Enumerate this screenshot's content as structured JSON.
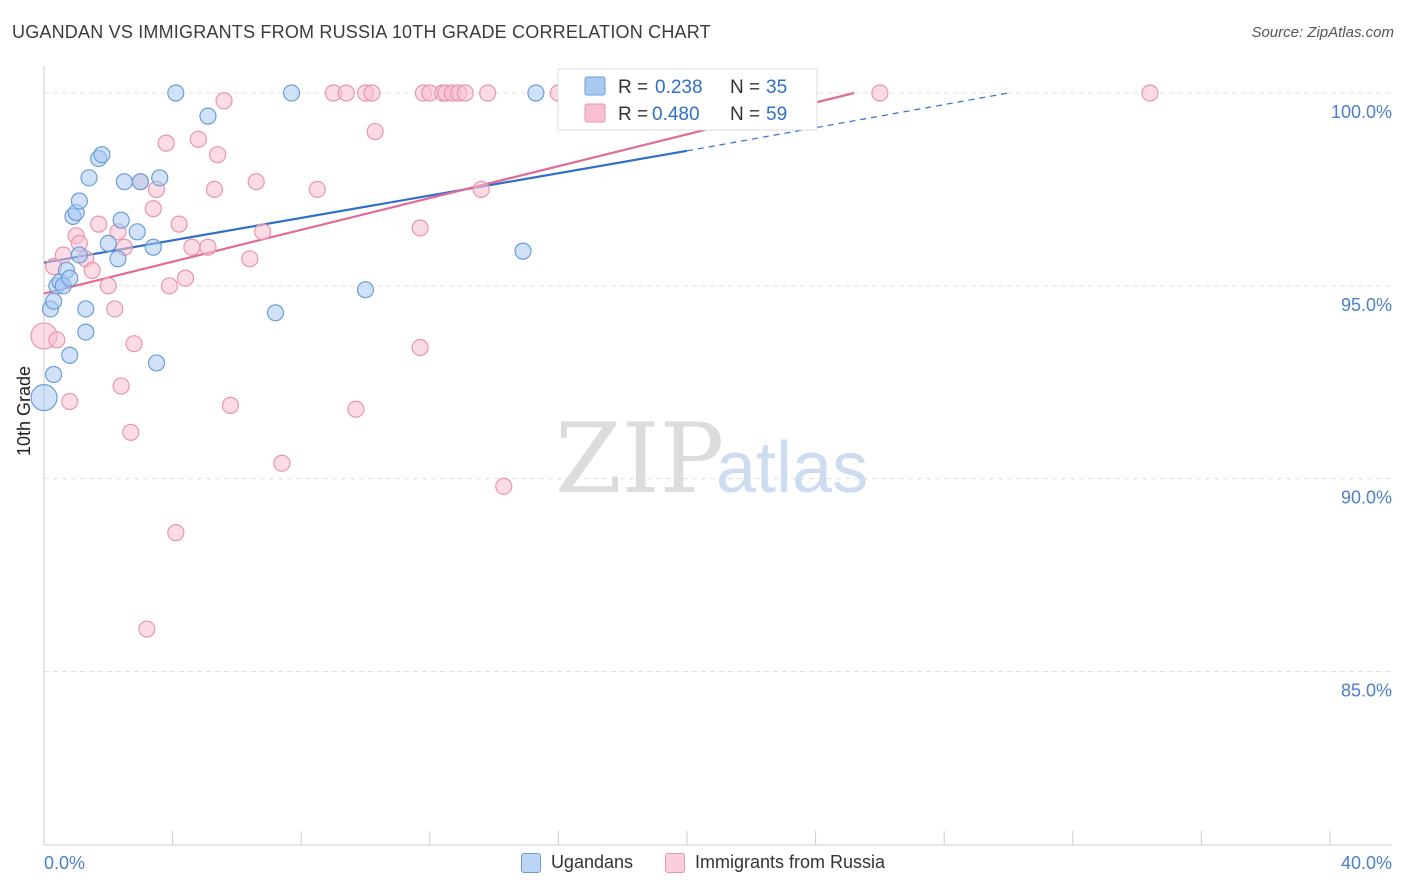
{
  "header": {
    "title": "UGANDAN VS IMMIGRANTS FROM RUSSIA 10TH GRADE CORRELATION CHART",
    "source": "Source: ZipAtlas.com"
  },
  "watermark": {
    "zip": "ZIP",
    "atlas": "atlas"
  },
  "chart_data": {
    "type": "scatter",
    "title": "UGANDAN VS IMMIGRANTS FROM RUSSIA 10TH GRADE CORRELATION CHART",
    "xlabel": "",
    "ylabel": "10th Grade",
    "xlim": [
      0,
      40
    ],
    "ylim": [
      80.5,
      100.7
    ],
    "x_tick_labels": {
      "left": "0.0%",
      "right": "40.0%"
    },
    "y_ticks": [
      {
        "value": 100,
        "label": "100.0%"
      },
      {
        "value": 95,
        "label": "95.0%"
      },
      {
        "value": 90,
        "label": "90.0%"
      },
      {
        "value": 85,
        "label": "85.0%"
      }
    ],
    "legend_stats": [
      {
        "r_label": "R =",
        "r_value": "0.238",
        "n_label": "N =",
        "n_value": "35"
      },
      {
        "r_label": "R =",
        "r_value": "0.480",
        "n_label": "N =",
        "n_value": "59"
      }
    ],
    "colors": {
      "ugandans_fill": "#a9c8f2",
      "ugandans_stroke": "#6a9fd8",
      "ugandans_line": "#2f6fcb",
      "russia_fill": "#f7bfd0",
      "russia_stroke": "#e994b0",
      "russia_line": "#e06b98",
      "axis_text": "#4a7fcc",
      "grid": "#e0e0e0"
    },
    "series": [
      {
        "name": "Ugandans",
        "r": 0.238,
        "n": 35,
        "trend": {
          "x0": 0,
          "y0": 95.6,
          "x1": 20,
          "y1": 98.5,
          "dash_x1": 30,
          "dash_y1": 100.0
        },
        "points": [
          [
            0.0,
            92.1
          ],
          [
            0.2,
            94.4
          ],
          [
            0.3,
            94.6
          ],
          [
            0.3,
            92.7
          ],
          [
            0.4,
            95.0
          ],
          [
            0.5,
            95.1
          ],
          [
            0.6,
            95.0
          ],
          [
            0.7,
            95.4
          ],
          [
            0.8,
            95.2
          ],
          [
            0.8,
            93.2
          ],
          [
            0.9,
            96.8
          ],
          [
            1.0,
            96.9
          ],
          [
            1.1,
            97.2
          ],
          [
            1.1,
            95.8
          ],
          [
            1.3,
            93.8
          ],
          [
            1.3,
            94.4
          ],
          [
            1.4,
            97.8
          ],
          [
            1.7,
            98.3
          ],
          [
            1.8,
            98.4
          ],
          [
            2.0,
            96.1
          ],
          [
            2.3,
            95.7
          ],
          [
            2.4,
            96.7
          ],
          [
            2.5,
            97.7
          ],
          [
            2.9,
            96.4
          ],
          [
            3.0,
            97.7
          ],
          [
            3.4,
            96.0
          ],
          [
            3.5,
            93.0
          ],
          [
            3.6,
            97.8
          ],
          [
            4.1,
            100.0
          ],
          [
            5.1,
            99.4
          ],
          [
            7.2,
            94.3
          ],
          [
            7.7,
            100.0
          ],
          [
            10.0,
            94.9
          ],
          [
            14.9,
            95.9
          ],
          [
            15.3,
            100.0
          ]
        ]
      },
      {
        "name": "Immigrants from Russia",
        "r": 0.48,
        "n": 59,
        "trend": {
          "x0": 0,
          "y0": 94.8,
          "x1": 25.2,
          "y1": 100.0
        },
        "points": [
          [
            0.0,
            93.7
          ],
          [
            0.3,
            95.5
          ],
          [
            0.4,
            93.6
          ],
          [
            0.6,
            95.8
          ],
          [
            0.8,
            92.0
          ],
          [
            1.0,
            96.3
          ],
          [
            1.1,
            96.1
          ],
          [
            1.3,
            95.7
          ],
          [
            1.5,
            95.4
          ],
          [
            1.7,
            96.6
          ],
          [
            2.0,
            95.0
          ],
          [
            2.2,
            94.4
          ],
          [
            2.3,
            96.4
          ],
          [
            2.4,
            92.4
          ],
          [
            2.5,
            96.0
          ],
          [
            2.7,
            91.2
          ],
          [
            2.8,
            93.5
          ],
          [
            3.0,
            97.7
          ],
          [
            3.2,
            86.1
          ],
          [
            3.4,
            97.0
          ],
          [
            3.5,
            97.5
          ],
          [
            3.8,
            98.7
          ],
          [
            3.9,
            95.0
          ],
          [
            4.1,
            88.6
          ],
          [
            4.2,
            96.6
          ],
          [
            4.4,
            95.2
          ],
          [
            4.6,
            96.0
          ],
          [
            4.8,
            98.8
          ],
          [
            5.1,
            96.0
          ],
          [
            5.3,
            97.5
          ],
          [
            5.4,
            98.4
          ],
          [
            5.6,
            99.8
          ],
          [
            5.8,
            91.9
          ],
          [
            6.4,
            95.7
          ],
          [
            6.6,
            97.7
          ],
          [
            6.8,
            96.4
          ],
          [
            7.4,
            90.4
          ],
          [
            8.5,
            97.5
          ],
          [
            9.0,
            100.0
          ],
          [
            9.4,
            100.0
          ],
          [
            9.7,
            91.8
          ],
          [
            10.0,
            100.0
          ],
          [
            10.2,
            100.0
          ],
          [
            10.3,
            99.0
          ],
          [
            11.7,
            96.5
          ],
          [
            11.7,
            93.4
          ],
          [
            11.8,
            100.0
          ],
          [
            12.0,
            100.0
          ],
          [
            12.4,
            100.0
          ],
          [
            12.5,
            100.0
          ],
          [
            12.7,
            100.0
          ],
          [
            12.9,
            100.0
          ],
          [
            13.1,
            100.0
          ],
          [
            13.6,
            97.5
          ],
          [
            13.8,
            100.0
          ],
          [
            14.3,
            89.8
          ],
          [
            16.0,
            100.0
          ],
          [
            26.0,
            100.0
          ],
          [
            34.4,
            100.0
          ]
        ]
      }
    ]
  }
}
